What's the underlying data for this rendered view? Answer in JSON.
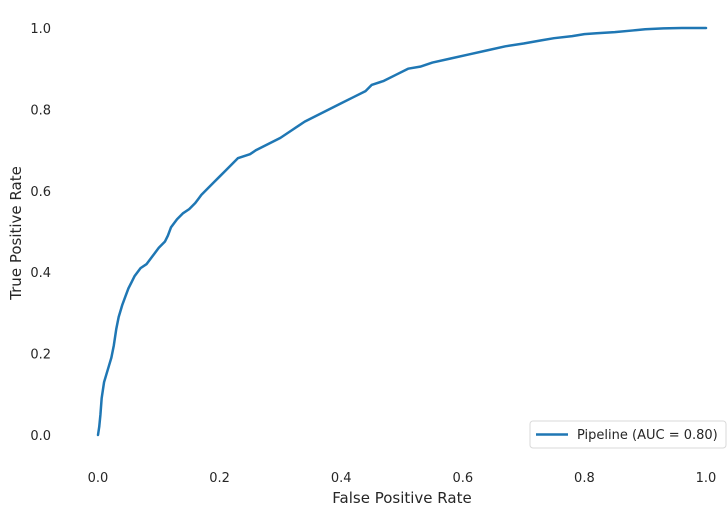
{
  "chart_data": {
    "type": "line",
    "title": "",
    "xlabel": "False Positive Rate",
    "ylabel": "True Positive Rate",
    "xlim": [
      -0.05,
      1.03
    ],
    "ylim": [
      -0.05,
      1.03
    ],
    "xticks": [
      "0.0",
      "0.2",
      "0.4",
      "0.6",
      "0.8",
      "1.0"
    ],
    "yticks": [
      "0.0",
      "0.2",
      "0.4",
      "0.6",
      "0.8",
      "1.0"
    ],
    "grid": false,
    "legend_position": "lower-right",
    "series": [
      {
        "name": "Pipeline (AUC = 0.80)",
        "color": "#1f77b4",
        "x": [
          0.0,
          0.002,
          0.004,
          0.006,
          0.008,
          0.01,
          0.014,
          0.018,
          0.022,
          0.026,
          0.03,
          0.034,
          0.038,
          0.04,
          0.045,
          0.05,
          0.055,
          0.06,
          0.07,
          0.08,
          0.09,
          0.1,
          0.11,
          0.115,
          0.12,
          0.13,
          0.14,
          0.15,
          0.16,
          0.165,
          0.17,
          0.18,
          0.19,
          0.2,
          0.21,
          0.22,
          0.23,
          0.24,
          0.25,
          0.26,
          0.28,
          0.3,
          0.32,
          0.33,
          0.34,
          0.36,
          0.38,
          0.4,
          0.42,
          0.44,
          0.45,
          0.47,
          0.49,
          0.51,
          0.53,
          0.55,
          0.58,
          0.61,
          0.64,
          0.67,
          0.7,
          0.73,
          0.75,
          0.78,
          0.8,
          0.82,
          0.85,
          0.88,
          0.9,
          0.93,
          0.96,
          1.0
        ],
        "y": [
          0.0,
          0.02,
          0.05,
          0.09,
          0.11,
          0.13,
          0.15,
          0.17,
          0.19,
          0.22,
          0.26,
          0.29,
          0.31,
          0.32,
          0.34,
          0.36,
          0.375,
          0.39,
          0.41,
          0.42,
          0.44,
          0.46,
          0.475,
          0.49,
          0.51,
          0.53,
          0.545,
          0.555,
          0.57,
          0.58,
          0.59,
          0.605,
          0.62,
          0.635,
          0.65,
          0.665,
          0.68,
          0.685,
          0.69,
          0.7,
          0.715,
          0.73,
          0.75,
          0.76,
          0.77,
          0.785,
          0.8,
          0.815,
          0.83,
          0.845,
          0.86,
          0.87,
          0.885,
          0.9,
          0.905,
          0.915,
          0.925,
          0.935,
          0.945,
          0.955,
          0.962,
          0.97,
          0.975,
          0.98,
          0.985,
          0.987,
          0.99,
          0.994,
          0.997,
          0.999,
          1.0,
          1.0
        ]
      }
    ]
  }
}
